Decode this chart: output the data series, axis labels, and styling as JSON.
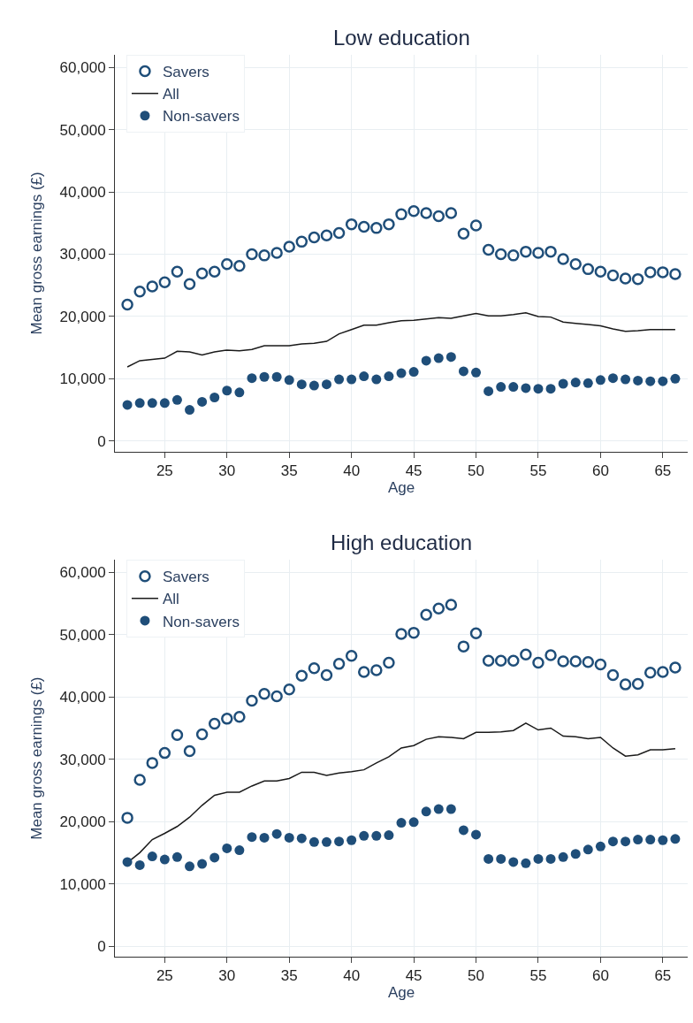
{
  "chart_data": [
    {
      "type": "scatter",
      "title": "Low education",
      "xlabel": "Age",
      "ylabel": "Mean gross earnings (£)",
      "x": [
        22,
        23,
        24,
        25,
        26,
        27,
        28,
        29,
        30,
        31,
        32,
        33,
        34,
        35,
        36,
        37,
        38,
        39,
        40,
        41,
        42,
        43,
        44,
        45,
        46,
        47,
        48,
        49,
        50,
        51,
        52,
        53,
        54,
        55,
        56,
        57,
        58,
        59,
        60,
        61,
        62,
        63,
        64,
        65,
        66
      ],
      "series": [
        {
          "name": "Savers",
          "marker": "circle-open",
          "color": "#1f4e79",
          "values": [
            21900,
            24000,
            24800,
            25500,
            27200,
            25200,
            26900,
            27200,
            28400,
            28100,
            30000,
            29800,
            30200,
            31200,
            32000,
            32700,
            33000,
            33400,
            34800,
            34400,
            34200,
            34800,
            36400,
            36900,
            36600,
            36100,
            36600,
            33300,
            34600,
            30700,
            30000,
            29800,
            30400,
            30200,
            30400,
            29200,
            28400,
            27600,
            27200,
            26600,
            26100,
            26000,
            27100,
            27100,
            26800
          ]
        },
        {
          "name": "All",
          "type": "line",
          "marker": "none",
          "color": "#1a1a1a",
          "values": [
            11900,
            12900,
            13100,
            13300,
            14400,
            14300,
            13800,
            14300,
            14600,
            14500,
            14700,
            15300,
            15300,
            15300,
            15600,
            15700,
            16000,
            17200,
            17900,
            18600,
            18600,
            19000,
            19300,
            19400,
            19600,
            19800,
            19700,
            20100,
            20500,
            20100,
            20100,
            20300,
            20600,
            20000,
            19900,
            19100,
            18900,
            18700,
            18500,
            18000,
            17600,
            17700,
            17900,
            17900,
            17900
          ]
        },
        {
          "name": "Non-savers",
          "marker": "circle",
          "color": "#1f4e79",
          "values": [
            5800,
            6100,
            6100,
            6100,
            6600,
            5000,
            6300,
            7000,
            8100,
            7800,
            10100,
            10300,
            10300,
            9800,
            9100,
            8900,
            9100,
            9900,
            9900,
            10400,
            9900,
            10400,
            10900,
            11100,
            12900,
            13300,
            13500,
            11200,
            11000,
            8000,
            8700,
            8700,
            8500,
            8400,
            8400,
            9200,
            9400,
            9300,
            9800,
            10100,
            9900,
            9700,
            9600,
            9600,
            10000
          ]
        }
      ],
      "xlim": [
        21,
        67
      ],
      "xticks": [
        25,
        30,
        35,
        40,
        45,
        50,
        55,
        60,
        65
      ],
      "ylim": [
        -1700,
        62000
      ],
      "yticks": [
        {
          "value": 0,
          "label": "0"
        },
        {
          "value": 10000,
          "label": "10,000"
        },
        {
          "value": 20000,
          "label": "20,000"
        },
        {
          "value": 30000,
          "label": "30,000"
        },
        {
          "value": 40000,
          "label": "40,000"
        },
        {
          "value": 50000,
          "label": "50,000"
        },
        {
          "value": 60000,
          "label": "60,000"
        }
      ],
      "grid": true,
      "legend": "top left"
    },
    {
      "type": "scatter",
      "title": "High education",
      "xlabel": "Age",
      "ylabel": "Mean gross earnings (£)",
      "x": [
        22,
        23,
        24,
        25,
        26,
        27,
        28,
        29,
        30,
        31,
        32,
        33,
        34,
        35,
        36,
        37,
        38,
        39,
        40,
        41,
        42,
        43,
        44,
        45,
        46,
        47,
        48,
        49,
        50,
        51,
        52,
        53,
        54,
        55,
        56,
        57,
        58,
        59,
        60,
        61,
        62,
        63,
        64,
        65,
        66
      ],
      "series": [
        {
          "name": "Savers",
          "marker": "circle-open",
          "color": "#1f4e79",
          "values": [
            20600,
            26700,
            29400,
            31000,
            33900,
            31300,
            34000,
            35700,
            36500,
            36800,
            39400,
            40500,
            40100,
            41200,
            43400,
            44600,
            43500,
            45300,
            46600,
            44000,
            44300,
            45500,
            50100,
            50300,
            53200,
            54200,
            54800,
            48100,
            50200,
            45800,
            45800,
            45800,
            46800,
            45500,
            46700,
            45700,
            45700,
            45600,
            45200,
            43500,
            42000,
            42100,
            43900,
            44000,
            44700
          ]
        },
        {
          "name": "All",
          "type": "line",
          "marker": "none",
          "color": "#1a1a1a",
          "values": [
            13400,
            15000,
            17100,
            18100,
            19200,
            20700,
            22600,
            24200,
            24700,
            24700,
            25700,
            26500,
            26500,
            26900,
            27900,
            27900,
            27400,
            27800,
            28000,
            28300,
            29400,
            30400,
            31800,
            32200,
            33200,
            33600,
            33500,
            33300,
            34300,
            34300,
            34400,
            34600,
            35800,
            34700,
            35000,
            33700,
            33600,
            33300,
            33500,
            31800,
            30500,
            30700,
            31500,
            31500,
            31700
          ]
        },
        {
          "name": "Non-savers",
          "marker": "circle",
          "color": "#1f4e79",
          "values": [
            13500,
            13000,
            14400,
            13900,
            14300,
            12800,
            13200,
            14200,
            15700,
            15400,
            17500,
            17400,
            18000,
            17400,
            17300,
            16700,
            16700,
            16800,
            17000,
            17700,
            17700,
            17800,
            19800,
            19900,
            21600,
            22000,
            22000,
            18600,
            17900,
            14000,
            14000,
            13500,
            13300,
            14000,
            14000,
            14300,
            14800,
            15500,
            16000,
            16800,
            16800,
            17100,
            17100,
            17000,
            17200
          ]
        }
      ],
      "xlim": [
        21,
        67
      ],
      "xticks": [
        25,
        30,
        35,
        40,
        45,
        50,
        55,
        60,
        65
      ],
      "ylim": [
        -1700,
        62000
      ],
      "yticks": [
        {
          "value": 0,
          "label": "0"
        },
        {
          "value": 10000,
          "label": "10,000"
        },
        {
          "value": 20000,
          "label": "20,000"
        },
        {
          "value": 30000,
          "label": "30,000"
        },
        {
          "value": 40000,
          "label": "40,000"
        },
        {
          "value": 50000,
          "label": "50,000"
        },
        {
          "value": 60000,
          "label": "60,000"
        }
      ],
      "grid": true,
      "legend": "top left"
    }
  ]
}
